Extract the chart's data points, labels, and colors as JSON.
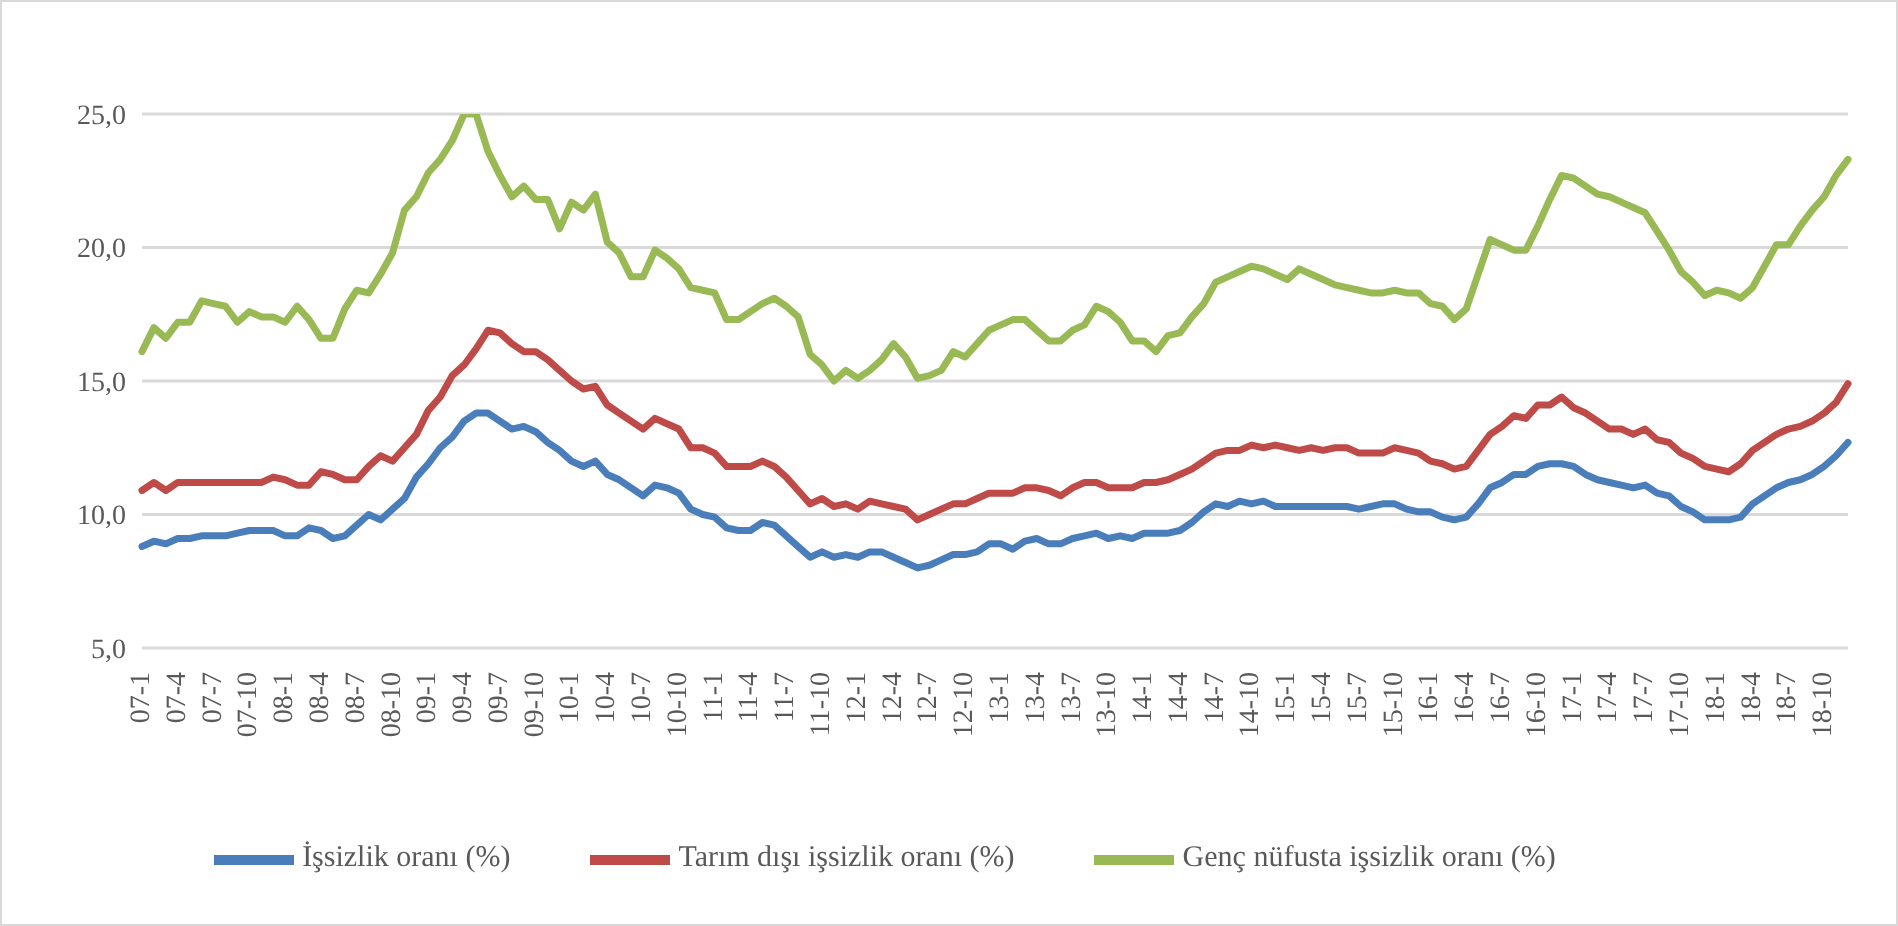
{
  "chart_data": {
    "type": "line",
    "categories": [
      "07-1",
      null,
      null,
      "07-4",
      null,
      null,
      "07-7",
      null,
      null,
      "07-10",
      null,
      null,
      "08-1",
      null,
      null,
      "08-4",
      null,
      null,
      "08-7",
      null,
      null,
      "08-10",
      null,
      null,
      "09-1",
      null,
      null,
      "09-4",
      null,
      null,
      "09-7",
      null,
      null,
      "09-10",
      null,
      null,
      "10-1",
      null,
      null,
      "10-4",
      null,
      null,
      "10-7",
      null,
      null,
      "10-10",
      null,
      null,
      "11-1",
      null,
      null,
      "11-4",
      null,
      null,
      "11-7",
      null,
      null,
      "11-10",
      null,
      null,
      "12-1",
      null,
      null,
      "12-4",
      null,
      null,
      "12-7",
      null,
      null,
      "12-10",
      null,
      null,
      "13-1",
      null,
      null,
      "13-4",
      null,
      null,
      "13-7",
      null,
      null,
      "13-10",
      null,
      null,
      "14-1",
      null,
      null,
      "14-4",
      null,
      null,
      "14-7",
      null,
      null,
      "14-10",
      null,
      null,
      "15-1",
      null,
      null,
      "15-4",
      null,
      null,
      "15-7",
      null,
      null,
      "15-10",
      null,
      null,
      "16-1",
      null,
      null,
      "16-4",
      null,
      null,
      "16-7",
      null,
      null,
      "16-10",
      null,
      null,
      "17-1",
      null,
      null,
      "17-4",
      null,
      null,
      "17-7",
      null,
      null,
      "17-10",
      null,
      null,
      "18-1",
      null,
      null,
      "18-4",
      null,
      null,
      "18-7",
      null,
      null,
      "18-10",
      null,
      null
    ],
    "series": [
      {
        "name": "İşsizlik oranı (%)",
        "color": "#4a7ebb",
        "values": [
          8.8,
          9.0,
          8.9,
          9.1,
          9.1,
          9.2,
          9.2,
          9.2,
          9.3,
          9.4,
          9.4,
          9.4,
          9.2,
          9.2,
          9.5,
          9.4,
          9.1,
          9.2,
          9.6,
          10.0,
          9.8,
          10.2,
          10.6,
          11.4,
          11.9,
          12.5,
          12.9,
          13.5,
          13.8,
          13.8,
          13.5,
          13.2,
          13.3,
          13.1,
          12.7,
          12.4,
          12.0,
          11.8,
          12.0,
          11.5,
          11.3,
          11.0,
          10.7,
          11.1,
          11.0,
          10.8,
          10.2,
          10.0,
          9.9,
          9.5,
          9.4,
          9.4,
          9.7,
          9.6,
          9.2,
          8.8,
          8.4,
          8.6,
          8.4,
          8.5,
          8.4,
          8.6,
          8.6,
          8.4,
          8.2,
          8.0,
          8.1,
          8.3,
          8.5,
          8.5,
          8.6,
          8.9,
          8.9,
          8.7,
          9.0,
          9.1,
          8.9,
          8.9,
          9.1,
          9.2,
          9.3,
          9.1,
          9.2,
          9.1,
          9.3,
          9.3,
          9.3,
          9.4,
          9.7,
          10.1,
          10.4,
          10.3,
          10.5,
          10.4,
          10.5,
          10.3,
          10.3,
          10.3,
          10.3,
          10.3,
          10.3,
          10.3,
          10.2,
          10.3,
          10.4,
          10.4,
          10.2,
          10.1,
          10.1,
          9.9,
          9.8,
          9.9,
          10.4,
          11.0,
          11.2,
          11.5,
          11.5,
          11.8,
          11.9,
          11.9,
          11.8,
          11.5,
          11.3,
          11.2,
          11.1,
          11.0,
          11.1,
          10.8,
          10.7,
          10.3,
          10.1,
          9.8,
          9.8,
          9.8,
          9.9,
          10.4,
          10.7,
          11.0,
          11.2,
          11.3,
          11.5,
          11.8,
          12.2,
          12.7
        ]
      },
      {
        "name": "Tarım dışı işsizlik oranı (%)",
        "color": "#be4b48",
        "values": [
          10.9,
          11.2,
          10.9,
          11.2,
          11.2,
          11.2,
          11.2,
          11.2,
          11.2,
          11.2,
          11.2,
          11.4,
          11.3,
          11.1,
          11.1,
          11.6,
          11.5,
          11.3,
          11.3,
          11.8,
          12.2,
          12.0,
          12.5,
          13.0,
          13.9,
          14.4,
          15.2,
          15.6,
          16.2,
          16.9,
          16.8,
          16.4,
          16.1,
          16.1,
          15.8,
          15.4,
          15.0,
          14.7,
          14.8,
          14.1,
          13.8,
          13.5,
          13.2,
          13.6,
          13.4,
          13.2,
          12.5,
          12.5,
          12.3,
          11.8,
          11.8,
          11.8,
          12.0,
          11.8,
          11.4,
          10.9,
          10.4,
          10.6,
          10.3,
          10.4,
          10.2,
          10.5,
          10.4,
          10.3,
          10.2,
          9.8,
          10.0,
          10.2,
          10.4,
          10.4,
          10.6,
          10.8,
          10.8,
          10.8,
          11.0,
          11.0,
          10.9,
          10.7,
          11.0,
          11.2,
          11.2,
          11.0,
          11.0,
          11.0,
          11.2,
          11.2,
          11.3,
          11.5,
          11.7,
          12.0,
          12.3,
          12.4,
          12.4,
          12.6,
          12.5,
          12.6,
          12.5,
          12.4,
          12.5,
          12.4,
          12.5,
          12.5,
          12.3,
          12.3,
          12.3,
          12.5,
          12.4,
          12.3,
          12.0,
          11.9,
          11.7,
          11.8,
          12.4,
          13.0,
          13.3,
          13.7,
          13.6,
          14.1,
          14.1,
          14.4,
          14.0,
          13.8,
          13.5,
          13.2,
          13.2,
          13.0,
          13.2,
          12.8,
          12.7,
          12.3,
          12.1,
          11.8,
          11.7,
          11.6,
          11.9,
          12.4,
          12.7,
          13.0,
          13.2,
          13.3,
          13.5,
          13.8,
          14.2,
          14.9
        ]
      },
      {
        "name": "Genç nüfusta işsizlik oranı (%)",
        "color": "#98b954",
        "values": [
          16.1,
          17.0,
          16.6,
          17.2,
          17.2,
          18.0,
          17.9,
          17.8,
          17.2,
          17.6,
          17.4,
          17.4,
          17.2,
          17.8,
          17.3,
          16.6,
          16.6,
          17.7,
          18.4,
          18.3,
          19.0,
          19.8,
          21.4,
          21.9,
          22.8,
          23.3,
          24.0,
          25.0,
          25.0,
          23.6,
          22.7,
          21.9,
          22.3,
          21.8,
          21.8,
          20.7,
          21.7,
          21.4,
          22.0,
          20.2,
          19.8,
          18.9,
          18.9,
          19.9,
          19.6,
          19.2,
          18.5,
          18.4,
          18.3,
          17.3,
          17.3,
          17.6,
          17.9,
          18.1,
          17.8,
          17.4,
          16.0,
          15.6,
          15.0,
          15.4,
          15.1,
          15.4,
          15.8,
          16.4,
          15.9,
          15.1,
          15.2,
          15.4,
          16.1,
          15.9,
          16.4,
          16.9,
          17.1,
          17.3,
          17.3,
          16.9,
          16.5,
          16.5,
          16.9,
          17.1,
          17.8,
          17.6,
          17.2,
          16.5,
          16.5,
          16.1,
          16.7,
          16.8,
          17.4,
          17.9,
          18.7,
          18.9,
          19.1,
          19.3,
          19.2,
          19.0,
          18.8,
          19.2,
          19.0,
          18.8,
          18.6,
          18.5,
          18.4,
          18.3,
          18.3,
          18.4,
          18.3,
          18.3,
          17.9,
          17.8,
          17.3,
          17.7,
          19.0,
          20.3,
          20.1,
          19.9,
          19.9,
          20.8,
          21.8,
          22.7,
          22.6,
          22.3,
          22.0,
          21.9,
          21.7,
          21.5,
          21.3,
          20.6,
          19.9,
          19.1,
          18.7,
          18.2,
          18.4,
          18.3,
          18.1,
          18.5,
          19.3,
          20.1,
          20.1,
          20.8,
          21.4,
          21.9,
          22.7,
          23.3
        ]
      }
    ],
    "ylim": [
      5,
      25
    ],
    "yticks": [
      {
        "value": 5,
        "label": "5,0"
      },
      {
        "value": 10,
        "label": "10,0"
      },
      {
        "value": 15,
        "label": "15,0"
      },
      {
        "value": 20,
        "label": "20,0"
      },
      {
        "value": 25,
        "label": "25,0"
      }
    ],
    "grid": "y",
    "legend": "bottom"
  }
}
